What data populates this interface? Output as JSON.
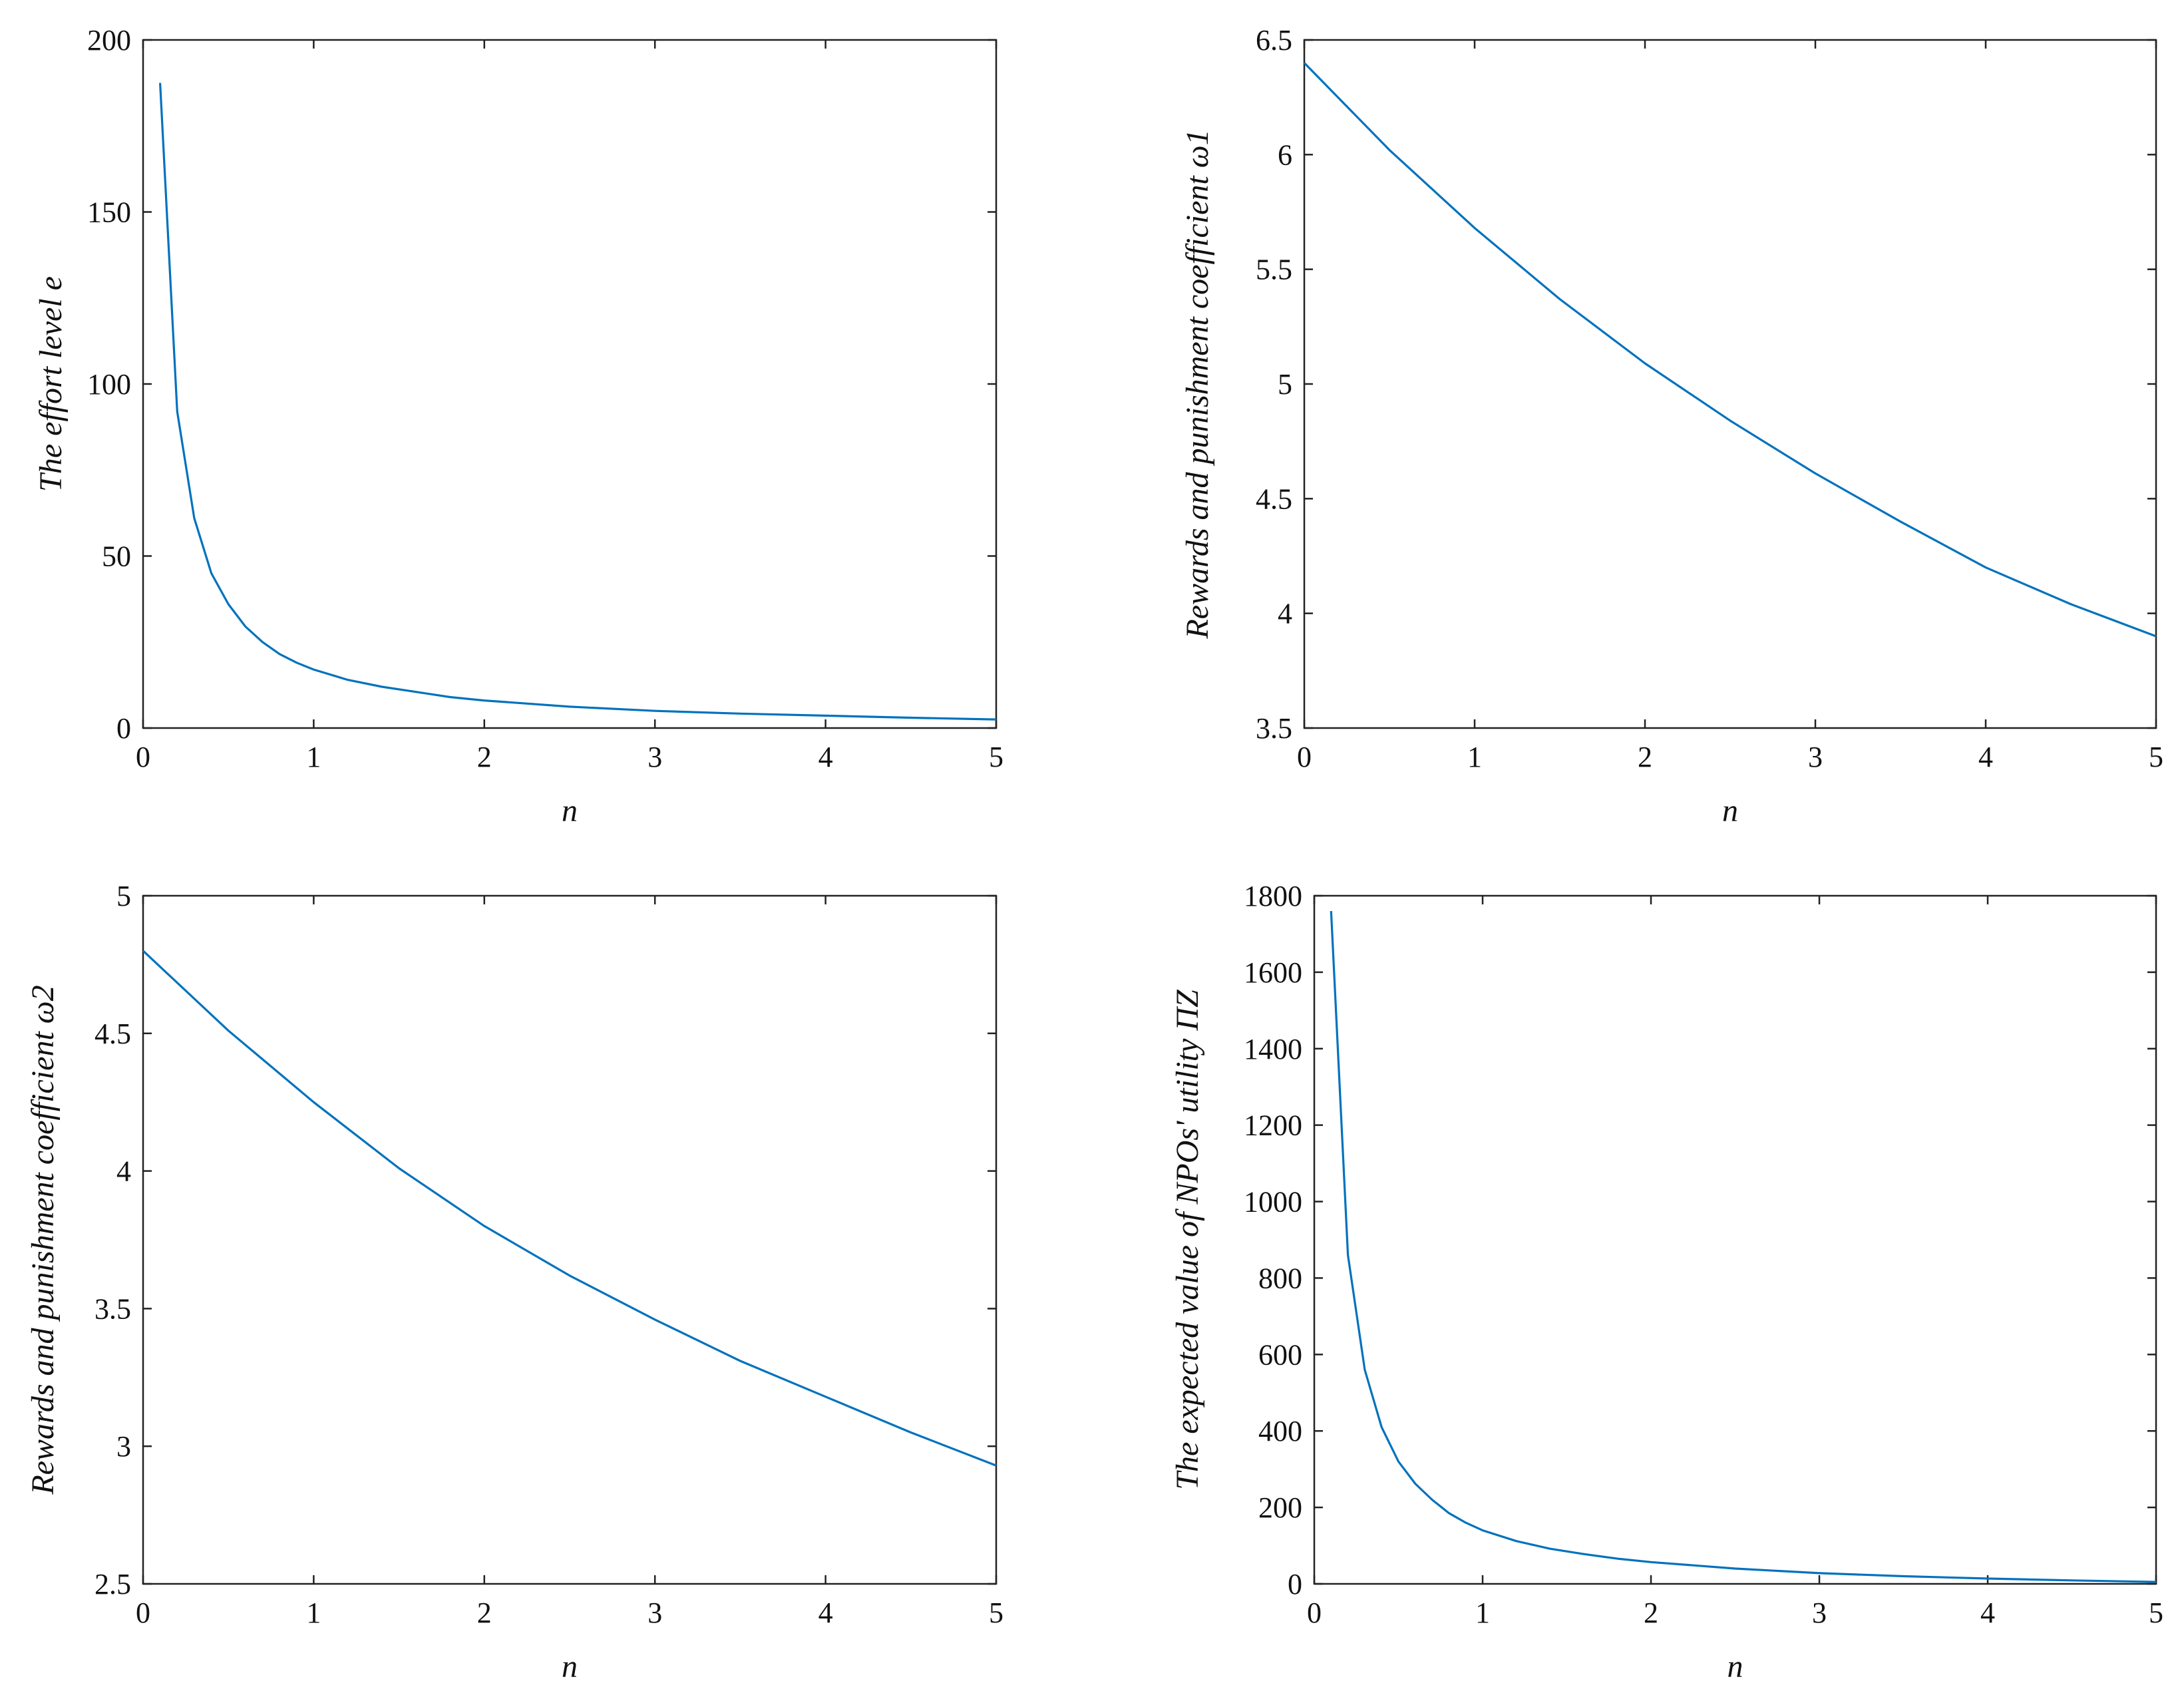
{
  "colors": {
    "line": "#0072BD",
    "axes": "#222222",
    "background": "#ffffff"
  },
  "chart_data": [
    {
      "type": "line",
      "xlabel": "n",
      "ylabel": "The effort level e",
      "xlim": [
        0,
        5
      ],
      "ylim": [
        0,
        200
      ],
      "xticks": [
        "0",
        "1",
        "2",
        "3",
        "4",
        "5"
      ],
      "yticks": [
        "0",
        "50",
        "100",
        "150",
        "200"
      ],
      "grid": false,
      "series": [
        {
          "x": [
            0.1,
            0.2,
            0.3,
            0.4,
            0.5,
            0.6,
            0.7,
            0.8,
            0.9,
            1.0,
            1.2,
            1.4,
            1.6,
            1.8,
            2.0,
            2.5,
            3.0,
            3.5,
            4.0,
            4.5,
            5.0
          ],
          "values": [
            187.5,
            92,
            61,
            45,
            36,
            29.5,
            25,
            21.5,
            19,
            17,
            14,
            12,
            10.5,
            9,
            8,
            6.2,
            5,
            4.2,
            3.6,
            3,
            2.5
          ]
        }
      ]
    },
    {
      "type": "line",
      "xlabel": "n",
      "ylabel": "Rewards and punishment coefficient ω1",
      "xlim": [
        0,
        5
      ],
      "ylim": [
        3.5,
        6.5
      ],
      "xticks": [
        "0",
        "1",
        "2",
        "3",
        "4",
        "5"
      ],
      "yticks": [
        "3.5",
        "4",
        "4.5",
        "5",
        "5.5",
        "6",
        "6.5"
      ],
      "grid": false,
      "series": [
        {
          "x": [
            0,
            0.5,
            1,
            1.5,
            2,
            2.5,
            3,
            3.5,
            4,
            4.5,
            5
          ],
          "values": [
            6.4,
            6.02,
            5.68,
            5.37,
            5.09,
            4.84,
            4.61,
            4.4,
            4.2,
            4.04,
            3.9
          ]
        }
      ]
    },
    {
      "type": "line",
      "xlabel": "n",
      "ylabel": "Rewards and punishment coefficient ω2",
      "xlim": [
        0,
        5
      ],
      "ylim": [
        2.5,
        5
      ],
      "xticks": [
        "0",
        "1",
        "2",
        "3",
        "4",
        "5"
      ],
      "yticks": [
        "2.5",
        "3",
        "3.5",
        "4",
        "4.5",
        "5"
      ],
      "grid": false,
      "series": [
        {
          "x": [
            0,
            0.5,
            1,
            1.5,
            2,
            2.5,
            3,
            3.5,
            4,
            4.5,
            5
          ],
          "values": [
            4.8,
            4.51,
            4.25,
            4.01,
            3.8,
            3.62,
            3.46,
            3.31,
            3.18,
            3.05,
            2.93
          ]
        }
      ]
    },
    {
      "type": "line",
      "xlabel": "n",
      "ylabel": "The expected value of NPOs' utility ΠZ",
      "xlim": [
        0,
        5
      ],
      "ylim": [
        0,
        1800
      ],
      "xticks": [
        "0",
        "1",
        "2",
        "3",
        "4",
        "5"
      ],
      "yticks": [
        "0",
        "200",
        "400",
        "600",
        "800",
        "1000",
        "1200",
        "1400",
        "1600",
        "1800"
      ],
      "grid": false,
      "series": [
        {
          "x": [
            0.1,
            0.2,
            0.3,
            0.4,
            0.5,
            0.6,
            0.7,
            0.8,
            0.9,
            1.0,
            1.2,
            1.4,
            1.6,
            1.8,
            2.0,
            2.5,
            3.0,
            3.5,
            4.0,
            4.5,
            5.0
          ],
          "values": [
            1760,
            860,
            560,
            410,
            320,
            262,
            220,
            185,
            160,
            140,
            112,
            92,
            78,
            66,
            57,
            40,
            28,
            20,
            14,
            9,
            5
          ]
        }
      ]
    }
  ]
}
